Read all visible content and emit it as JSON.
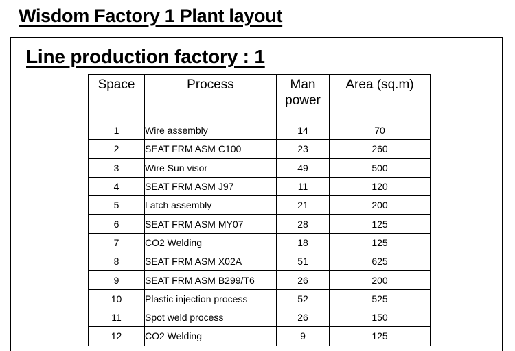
{
  "header": {
    "title": "Wisdom Factory 1 Plant layout"
  },
  "section": {
    "title": "Line production factory : 1"
  },
  "table": {
    "columns": {
      "space": "Space",
      "process": "Process",
      "manpower": "Man power",
      "area": "Area (sq.m)"
    },
    "rows": [
      {
        "space": "1",
        "process": "Wire assembly",
        "manpower": "14",
        "area": "70"
      },
      {
        "space": "2",
        "process": "SEAT FRM ASM C100",
        "manpower": "23",
        "area": "260"
      },
      {
        "space": "3",
        "process": "Wire Sun visor",
        "manpower": "49",
        "area": "500"
      },
      {
        "space": "4",
        "process": "SEAT FRM ASM J97",
        "manpower": "11",
        "area": "120"
      },
      {
        "space": "5",
        "process": "Latch assembly",
        "manpower": "21",
        "area": "200"
      },
      {
        "space": "6",
        "process": "SEAT FRM ASM MY07",
        "manpower": "28",
        "area": "125"
      },
      {
        "space": "7",
        "process": "CO2 Welding",
        "manpower": "18",
        "area": "125"
      },
      {
        "space": "8",
        "process": "SEAT FRM ASM X02A",
        "manpower": "51",
        "area": "625"
      },
      {
        "space": "9",
        "process": "SEAT FRM ASM B299/T6",
        "manpower": "26",
        "area": "200"
      },
      {
        "space": "10",
        "process": "Plastic injection process",
        "manpower": "52",
        "area": "525"
      },
      {
        "space": "11",
        "process": "Spot weld process",
        "manpower": "26",
        "area": "150"
      },
      {
        "space": "12",
        "process": "CO2 Welding",
        "manpower": "9",
        "area": "125"
      }
    ]
  }
}
